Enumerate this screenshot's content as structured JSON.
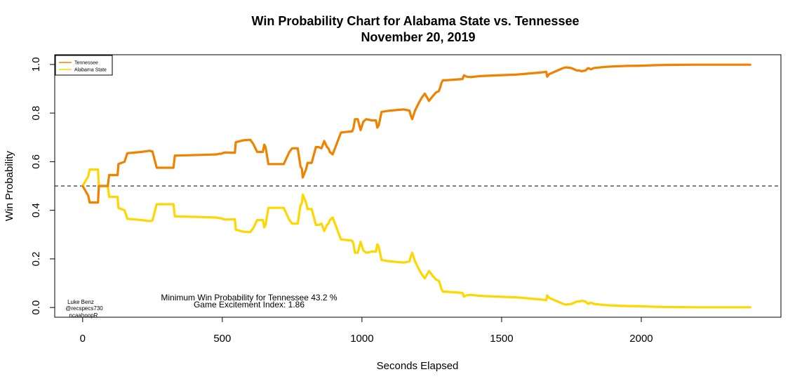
{
  "chart_data": {
    "type": "line",
    "title": "Win Probability Chart for Alabama State vs. Tennessee",
    "subtitle": "November 20, 2019",
    "xlabel": "Seconds Elapsed",
    "ylabel": "Win Probability",
    "xlim": [
      -100,
      2500
    ],
    "ylim": [
      -0.04,
      1.04
    ],
    "x_ticks": [
      0,
      500,
      1000,
      1500,
      2000
    ],
    "y_ticks": [
      0.0,
      0.2,
      0.4,
      0.6,
      0.8,
      1.0
    ],
    "x_tick_labels": [
      "0",
      "500",
      "1000",
      "1500",
      "2000"
    ],
    "y_tick_labels": [
      "0.0",
      "0.2",
      "0.4",
      "0.6",
      "0.8",
      "1.0"
    ],
    "grid": false,
    "reference_line": {
      "y": 0.5,
      "style": "dashed"
    },
    "legend": {
      "position": "top-left",
      "entries": [
        {
          "name": "Tennessee",
          "color": "#F08200"
        },
        {
          "name": "Alabama State",
          "color": "#FFD700"
        }
      ]
    },
    "series": [
      {
        "name": "Tennessee",
        "color": "#F08200",
        "points": [
          [
            0,
            0.5
          ],
          [
            20,
            0.46
          ],
          [
            25,
            0.432
          ],
          [
            55,
            0.432
          ],
          [
            58,
            0.5
          ],
          [
            90,
            0.5
          ],
          [
            95,
            0.545
          ],
          [
            125,
            0.545
          ],
          [
            128,
            0.59
          ],
          [
            150,
            0.6
          ],
          [
            160,
            0.635
          ],
          [
            210,
            0.64
          ],
          [
            240,
            0.645
          ],
          [
            250,
            0.642
          ],
          [
            265,
            0.575
          ],
          [
            325,
            0.575
          ],
          [
            330,
            0.625
          ],
          [
            430,
            0.628
          ],
          [
            480,
            0.63
          ],
          [
            490,
            0.633
          ],
          [
            495,
            0.632
          ],
          [
            500,
            0.635
          ],
          [
            510,
            0.638
          ],
          [
            545,
            0.637
          ],
          [
            548,
            0.68
          ],
          [
            575,
            0.688
          ],
          [
            600,
            0.69
          ],
          [
            610,
            0.675
          ],
          [
            625,
            0.64
          ],
          [
            645,
            0.64
          ],
          [
            650,
            0.67
          ],
          [
            655,
            0.66
          ],
          [
            665,
            0.59
          ],
          [
            720,
            0.59
          ],
          [
            740,
            0.64
          ],
          [
            750,
            0.655
          ],
          [
            770,
            0.655
          ],
          [
            780,
            0.58
          ],
          [
            785,
            0.57
          ],
          [
            788,
            0.535
          ],
          [
            800,
            0.57
          ],
          [
            805,
            0.595
          ],
          [
            820,
            0.595
          ],
          [
            835,
            0.66
          ],
          [
            845,
            0.66
          ],
          [
            855,
            0.655
          ],
          [
            865,
            0.685
          ],
          [
            875,
            0.66
          ],
          [
            880,
            0.655
          ],
          [
            885,
            0.64
          ],
          [
            895,
            0.63
          ],
          [
            905,
            0.66
          ],
          [
            915,
            0.69
          ],
          [
            925,
            0.72
          ],
          [
            965,
            0.725
          ],
          [
            970,
            0.74
          ],
          [
            975,
            0.775
          ],
          [
            985,
            0.775
          ],
          [
            995,
            0.73
          ],
          [
            1005,
            0.765
          ],
          [
            1015,
            0.775
          ],
          [
            1035,
            0.77
          ],
          [
            1050,
            0.77
          ],
          [
            1055,
            0.74
          ],
          [
            1060,
            0.75
          ],
          [
            1070,
            0.805
          ],
          [
            1100,
            0.81
          ],
          [
            1150,
            0.815
          ],
          [
            1170,
            0.81
          ],
          [
            1175,
            0.79
          ],
          [
            1180,
            0.775
          ],
          [
            1190,
            0.81
          ],
          [
            1205,
            0.845
          ],
          [
            1215,
            0.865
          ],
          [
            1225,
            0.88
          ],
          [
            1240,
            0.85
          ],
          [
            1250,
            0.865
          ],
          [
            1265,
            0.885
          ],
          [
            1275,
            0.89
          ],
          [
            1280,
            0.905
          ],
          [
            1285,
            0.925
          ],
          [
            1290,
            0.935
          ],
          [
            1300,
            0.935
          ],
          [
            1360,
            0.94
          ],
          [
            1365,
            0.955
          ],
          [
            1375,
            0.95
          ],
          [
            1390,
            0.948
          ],
          [
            1420,
            0.952
          ],
          [
            1480,
            0.955
          ],
          [
            1550,
            0.958
          ],
          [
            1620,
            0.965
          ],
          [
            1650,
            0.968
          ],
          [
            1660,
            0.97
          ],
          [
            1663,
            0.95
          ],
          [
            1670,
            0.96
          ],
          [
            1700,
            0.975
          ],
          [
            1720,
            0.985
          ],
          [
            1730,
            0.988
          ],
          [
            1750,
            0.985
          ],
          [
            1770,
            0.975
          ],
          [
            1780,
            0.975
          ],
          [
            1785,
            0.972
          ],
          [
            1800,
            0.975
          ],
          [
            1810,
            0.985
          ],
          [
            1820,
            0.98
          ],
          [
            1830,
            0.985
          ],
          [
            1870,
            0.99
          ],
          [
            1900,
            0.992
          ],
          [
            1950,
            0.994
          ],
          [
            2000,
            0.995
          ],
          [
            2050,
            0.997
          ],
          [
            2100,
            0.998
          ],
          [
            2200,
            0.999
          ],
          [
            2390,
            0.999
          ]
        ]
      },
      {
        "name": "Alabama State",
        "color": "#FFD700",
        "points": [
          [
            0,
            0.5
          ],
          [
            20,
            0.54
          ],
          [
            25,
            0.568
          ],
          [
            55,
            0.568
          ],
          [
            58,
            0.5
          ],
          [
            90,
            0.5
          ],
          [
            95,
            0.455
          ],
          [
            125,
            0.455
          ],
          [
            128,
            0.41
          ],
          [
            150,
            0.4
          ],
          [
            160,
            0.365
          ],
          [
            210,
            0.36
          ],
          [
            240,
            0.355
          ],
          [
            250,
            0.358
          ],
          [
            265,
            0.425
          ],
          [
            325,
            0.425
          ],
          [
            330,
            0.375
          ],
          [
            430,
            0.372
          ],
          [
            480,
            0.37
          ],
          [
            490,
            0.367
          ],
          [
            495,
            0.368
          ],
          [
            500,
            0.365
          ],
          [
            510,
            0.362
          ],
          [
            545,
            0.363
          ],
          [
            548,
            0.32
          ],
          [
            575,
            0.312
          ],
          [
            600,
            0.31
          ],
          [
            610,
            0.325
          ],
          [
            625,
            0.36
          ],
          [
            645,
            0.36
          ],
          [
            650,
            0.33
          ],
          [
            655,
            0.34
          ],
          [
            665,
            0.41
          ],
          [
            720,
            0.41
          ],
          [
            740,
            0.36
          ],
          [
            750,
            0.345
          ],
          [
            770,
            0.345
          ],
          [
            780,
            0.42
          ],
          [
            785,
            0.43
          ],
          [
            788,
            0.465
          ],
          [
            800,
            0.43
          ],
          [
            805,
            0.405
          ],
          [
            820,
            0.405
          ],
          [
            835,
            0.34
          ],
          [
            845,
            0.34
          ],
          [
            855,
            0.345
          ],
          [
            865,
            0.315
          ],
          [
            875,
            0.34
          ],
          [
            880,
            0.345
          ],
          [
            885,
            0.36
          ],
          [
            895,
            0.37
          ],
          [
            905,
            0.34
          ],
          [
            915,
            0.31
          ],
          [
            925,
            0.28
          ],
          [
            965,
            0.275
          ],
          [
            970,
            0.26
          ],
          [
            975,
            0.225
          ],
          [
            985,
            0.225
          ],
          [
            995,
            0.27
          ],
          [
            1005,
            0.235
          ],
          [
            1015,
            0.225
          ],
          [
            1035,
            0.23
          ],
          [
            1050,
            0.23
          ],
          [
            1055,
            0.26
          ],
          [
            1060,
            0.25
          ],
          [
            1070,
            0.195
          ],
          [
            1100,
            0.19
          ],
          [
            1150,
            0.185
          ],
          [
            1170,
            0.19
          ],
          [
            1175,
            0.21
          ],
          [
            1180,
            0.225
          ],
          [
            1190,
            0.19
          ],
          [
            1205,
            0.155
          ],
          [
            1215,
            0.135
          ],
          [
            1225,
            0.12
          ],
          [
            1240,
            0.15
          ],
          [
            1250,
            0.135
          ],
          [
            1265,
            0.115
          ],
          [
            1275,
            0.11
          ],
          [
            1280,
            0.095
          ],
          [
            1285,
            0.075
          ],
          [
            1290,
            0.065
          ],
          [
            1300,
            0.065
          ],
          [
            1360,
            0.06
          ],
          [
            1365,
            0.045
          ],
          [
            1375,
            0.05
          ],
          [
            1390,
            0.052
          ],
          [
            1420,
            0.048
          ],
          [
            1480,
            0.045
          ],
          [
            1550,
            0.042
          ],
          [
            1620,
            0.035
          ],
          [
            1650,
            0.032
          ],
          [
            1660,
            0.03
          ],
          [
            1663,
            0.05
          ],
          [
            1670,
            0.04
          ],
          [
            1700,
            0.025
          ],
          [
            1720,
            0.015
          ],
          [
            1730,
            0.012
          ],
          [
            1750,
            0.015
          ],
          [
            1770,
            0.025
          ],
          [
            1780,
            0.025
          ],
          [
            1785,
            0.028
          ],
          [
            1800,
            0.025
          ],
          [
            1810,
            0.015
          ],
          [
            1820,
            0.02
          ],
          [
            1830,
            0.015
          ],
          [
            1870,
            0.01
          ],
          [
            1900,
            0.008
          ],
          [
            1950,
            0.006
          ],
          [
            2000,
            0.005
          ],
          [
            2050,
            0.003
          ],
          [
            2100,
            0.002
          ],
          [
            2200,
            0.001
          ],
          [
            2390,
            0.001
          ]
        ]
      }
    ],
    "annotations": {
      "min_win_prob": "Minimum Win Probability for Tennessee 43.2 %",
      "excitement_index": "Game Excitement Index: 1.86",
      "credit_lines": [
        "Luke Benz",
        "@recspecs730",
        "ncaahoopR"
      ]
    }
  }
}
